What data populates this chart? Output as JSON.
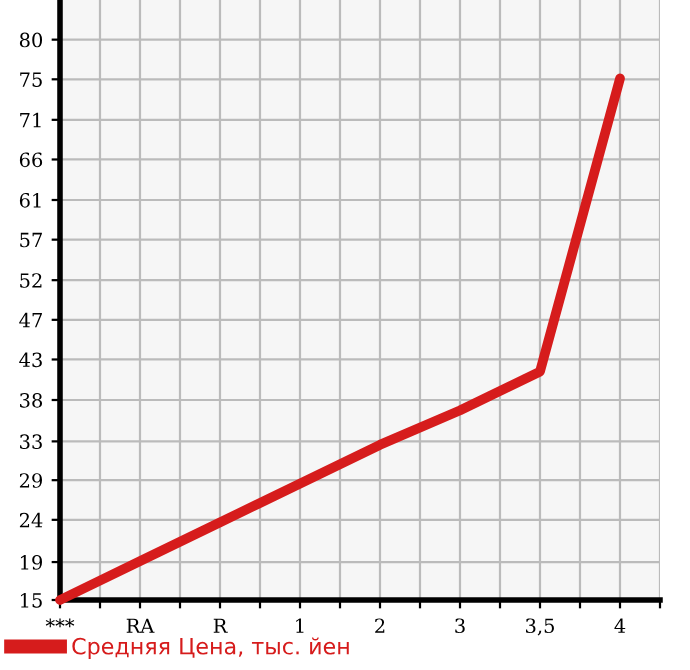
{
  "chart_data": {
    "type": "line",
    "categories": [
      "***",
      "RA",
      "R",
      "1",
      "2",
      "3",
      "3,5",
      "4"
    ],
    "series": [
      {
        "name": "Средняя Цена, тыс. йен",
        "color": "#d61c1c",
        "values": [
          15,
          19.5,
          24,
          28.5,
          33,
          37,
          41.5,
          75.5
        ]
      }
    ],
    "ylim": [
      15,
      84.6
    ],
    "yticks": [
      15,
      {
        "value": 19.4,
        "label": "19"
      },
      {
        "value": 24.3,
        "label": "24"
      },
      {
        "value": 28.9,
        "label": "29"
      },
      {
        "value": 33.4,
        "label": "33"
      },
      {
        "value": 38.2,
        "label": "38"
      },
      {
        "value": 42.9,
        "label": "43"
      },
      {
        "value": 47.5,
        "label": "47"
      },
      {
        "value": 52.1,
        "label": "52"
      },
      {
        "value": 56.8,
        "label": "57"
      },
      {
        "value": 61.4,
        "label": "61"
      },
      {
        "value": 66.1,
        "label": "66"
      },
      {
        "value": 70.7,
        "label": "71"
      },
      {
        "value": 75.4,
        "label": "75"
      },
      80
    ],
    "grid": true,
    "legend": "bottom",
    "marker": "none",
    "line_style": "solid"
  }
}
